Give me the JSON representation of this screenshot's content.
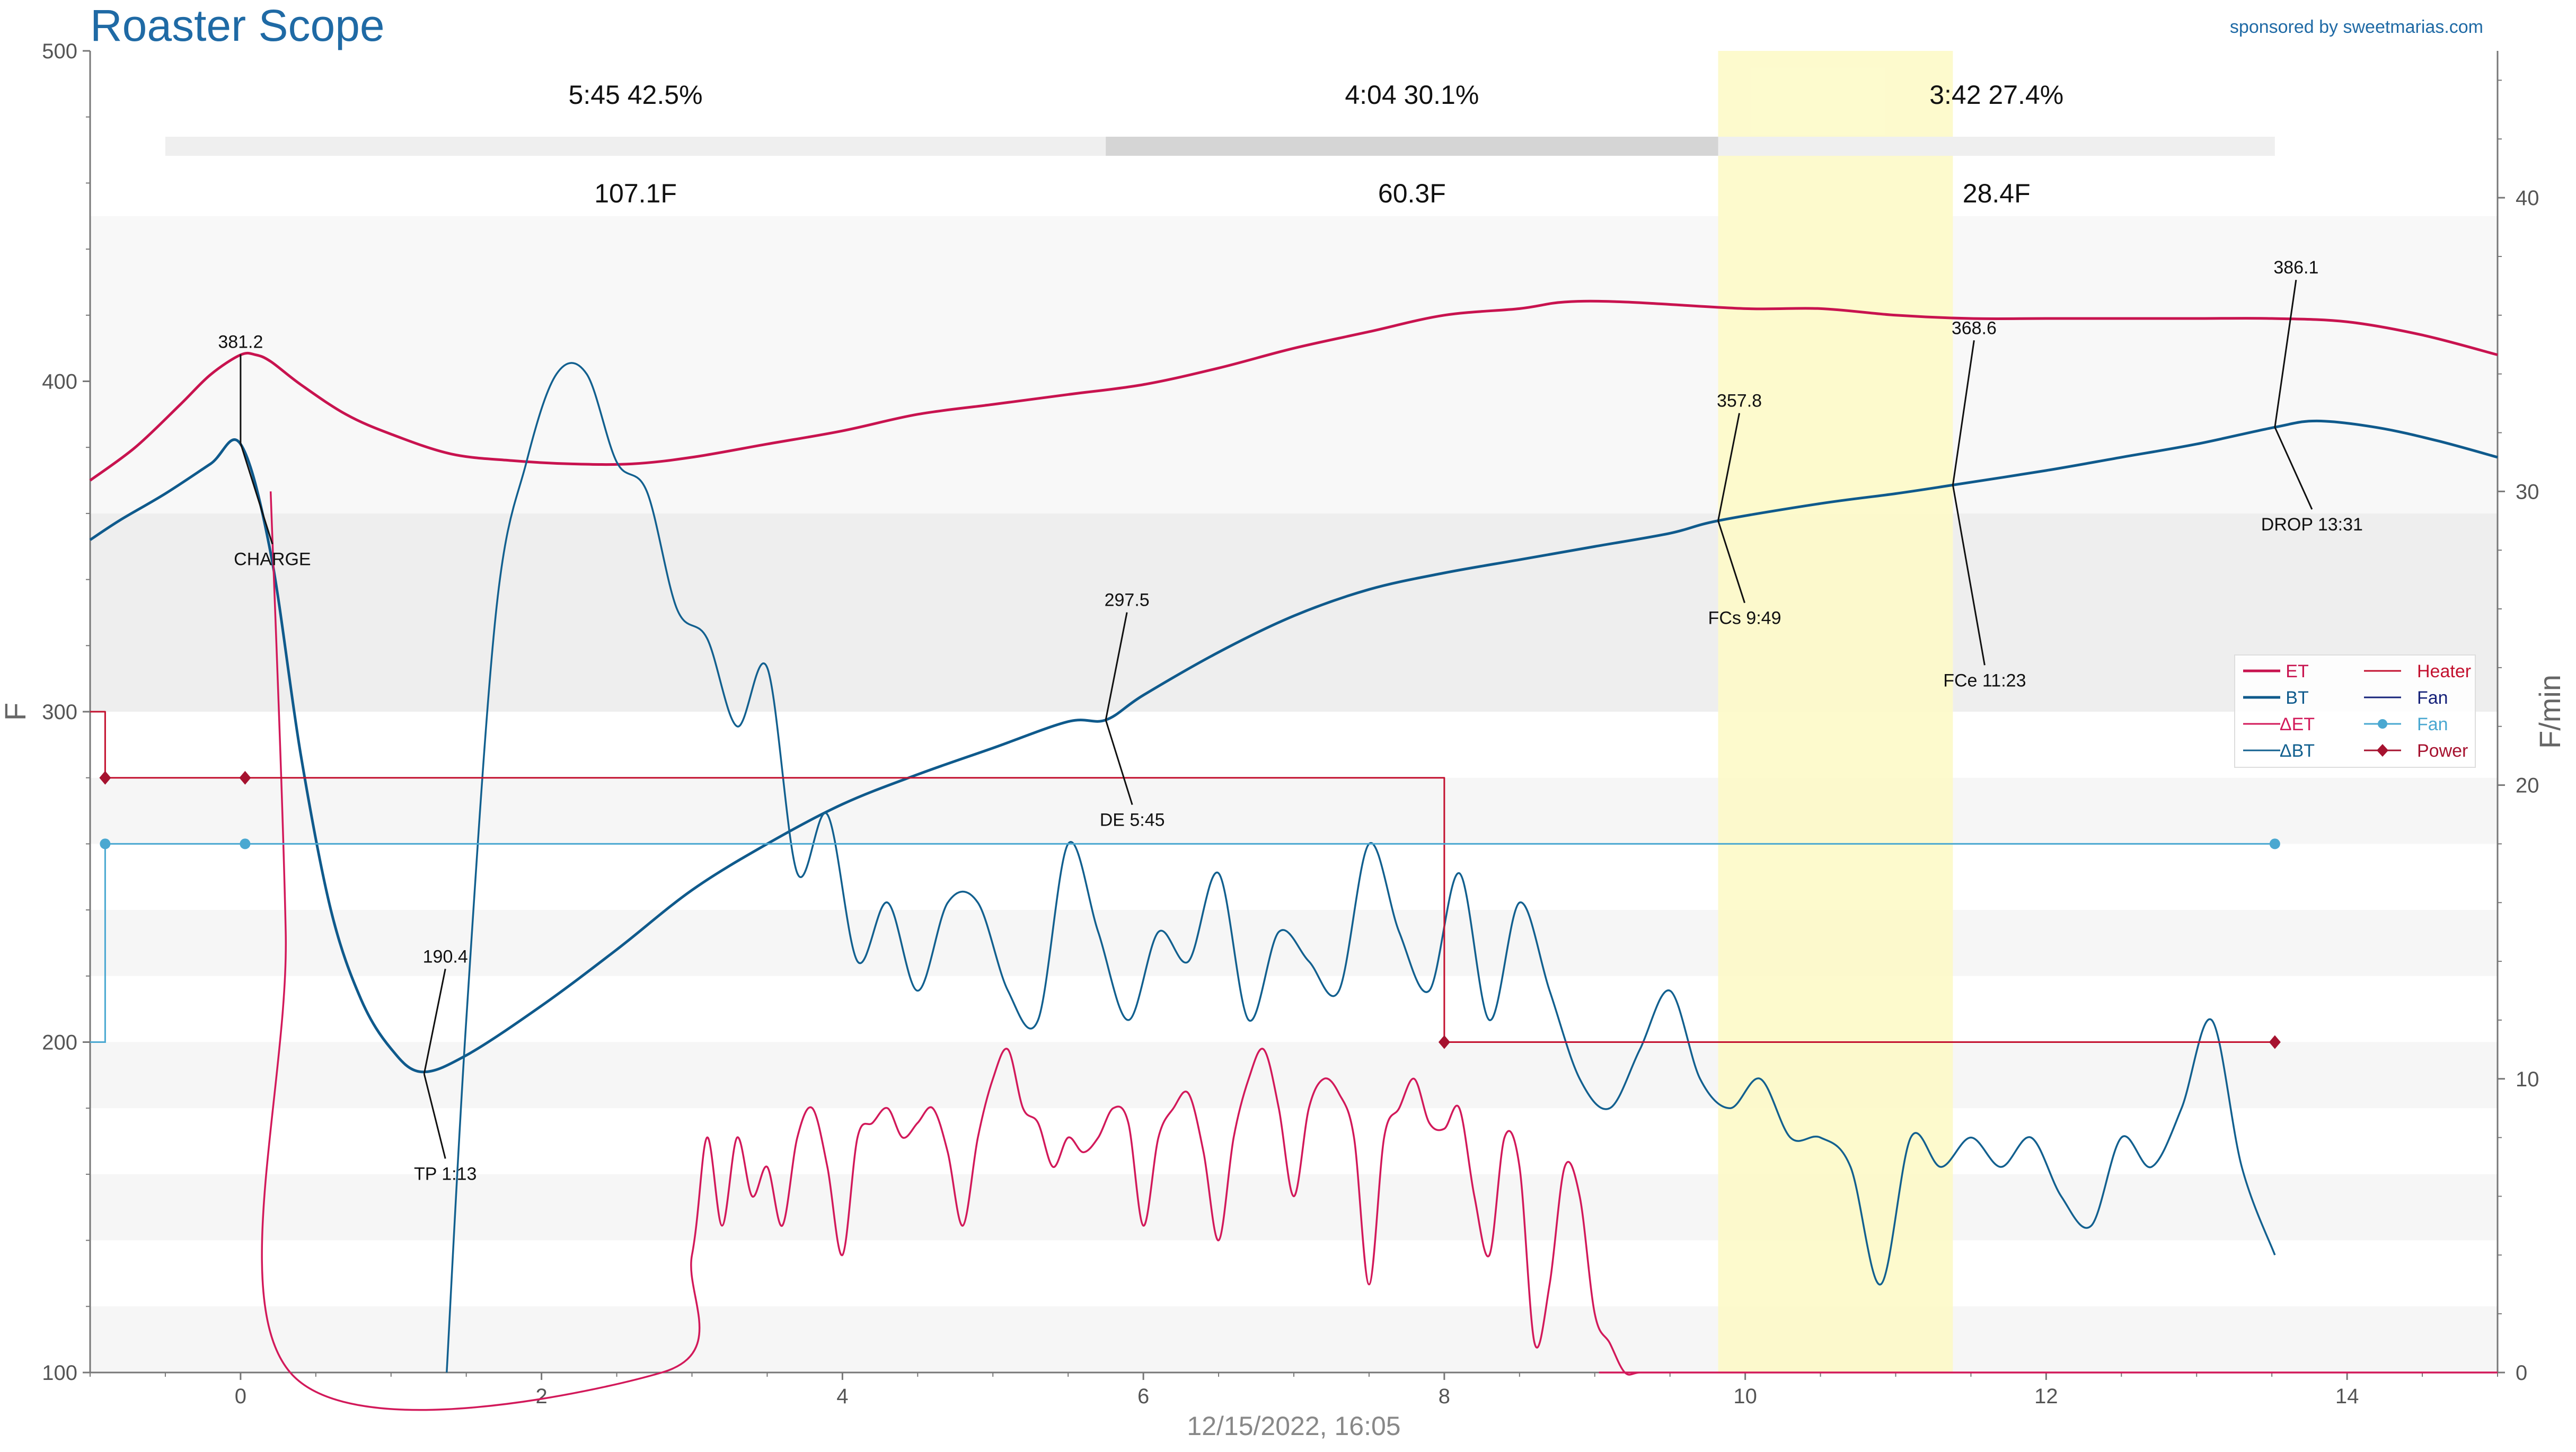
{
  "app": {
    "title": "Roaster Scope",
    "sponsor": "sponsored by sweetmarias.com",
    "timestamp": "12/15/2022, 16:05"
  },
  "colors": {
    "et": "#c8134f",
    "bt": "#0f5a8c",
    "delta_et": "#d2195a",
    "delta_bt": "#12608f",
    "heater": "#c3112f",
    "fan_line": "#17237a",
    "fan_points": "#4aa8d1",
    "power": "#a6122f",
    "highlight": "#fdfac8"
  },
  "chart_data": {
    "type": "line",
    "xlabel": "",
    "ylabel": "F",
    "y2label": "F/min",
    "xlim": [
      -1,
      15
    ],
    "ylim": [
      100,
      500
    ],
    "y2lim": [
      0,
      45
    ],
    "x_ticks": [
      0,
      2,
      4,
      6,
      8,
      10,
      12,
      14
    ],
    "y_ticks": [
      100,
      200,
      300,
      400,
      500
    ],
    "y2_ticks": [
      0,
      10,
      20,
      30,
      40
    ],
    "phases": [
      {
        "time": "5:45",
        "pct": "42.5%",
        "delta": "107.1F"
      },
      {
        "time": "4:04",
        "pct": "30.1%",
        "delta": "60.3F"
      },
      {
        "time": "3:42",
        "pct": "27.4%",
        "delta": "28.4F"
      }
    ],
    "phase_boundaries": [
      -0.5,
      5.75,
      9.82,
      13.52
    ],
    "first_crack_window": [
      9.82,
      11.38
    ],
    "series": [
      {
        "name": "ET",
        "axis": "left",
        "x": [
          -1,
          -0.7,
          -0.4,
          -0.2,
          0,
          0.1,
          0.2,
          0.4,
          0.7,
          1.0,
          1.4,
          1.8,
          2.2,
          2.6,
          3.0,
          3.5,
          4.0,
          4.5,
          5.0,
          5.5,
          6.0,
          6.5,
          7.0,
          7.5,
          8.0,
          8.5,
          8.8,
          9.2,
          10.0,
          10.5,
          11.0,
          11.5,
          12.0,
          12.5,
          13.0,
          13.5,
          14.0,
          14.5,
          15.0
        ],
        "y": [
          370,
          380,
          393,
          402,
          408,
          408,
          406,
          399,
          390,
          384,
          378,
          376,
          375,
          375,
          377,
          381,
          385,
          390,
          393,
          396,
          399,
          404,
          410,
          415,
          420,
          422,
          424,
          424,
          422,
          422,
          420,
          419,
          419,
          419,
          419,
          419,
          418,
          414,
          408
        ]
      },
      {
        "name": "BT",
        "axis": "left",
        "x": [
          -1,
          -0.8,
          -0.5,
          -0.2,
          0,
          0.2,
          0.4,
          0.6,
          0.8,
          1.0,
          1.2,
          1.5,
          2.0,
          2.5,
          3.0,
          3.5,
          4.0,
          4.5,
          5.0,
          5.5,
          5.75,
          6.0,
          6.5,
          7.0,
          7.5,
          8.0,
          8.5,
          9.0,
          9.5,
          9.82,
          10.5,
          11.0,
          11.38,
          12.0,
          12.5,
          13.0,
          13.52,
          13.8,
          14.2,
          14.6,
          15.0
        ],
        "y": [
          352,
          358,
          366,
          375,
          381,
          348,
          287,
          240,
          213,
          198,
          191,
          196,
          211,
          228,
          246,
          260,
          272,
          281,
          289,
          297,
          297.5,
          305,
          318,
          329,
          337,
          342,
          346,
          350,
          354,
          357.8,
          363,
          366,
          368.6,
          373,
          377,
          381,
          386.1,
          388,
          386,
          382,
          377
        ]
      },
      {
        "name": "ΔET",
        "axis": "right",
        "x": [
          0.2,
          0.3,
          0.33,
          2.8,
          3.0,
          3.1,
          3.2,
          3.3,
          3.4,
          3.5,
          3.6,
          3.7,
          3.8,
          3.9,
          4.0,
          4.1,
          4.2,
          4.3,
          4.4,
          4.5,
          4.6,
          4.7,
          4.8,
          4.9,
          5.0,
          5.1,
          5.2,
          5.3,
          5.4,
          5.5,
          5.6,
          5.7,
          5.8,
          5.9,
          6.0,
          6.1,
          6.2,
          6.3,
          6.4,
          6.5,
          6.6,
          6.7,
          6.8,
          6.9,
          7.0,
          7.1,
          7.2,
          7.3,
          7.4,
          7.5,
          7.6,
          7.7,
          7.8,
          7.9,
          8.0,
          8.1,
          8.2,
          8.3,
          8.4,
          8.5,
          8.6,
          8.7,
          8.8,
          8.9,
          9.0,
          9.1,
          9.2,
          9.3,
          9.5,
          15.0
        ],
        "y": [
          30,
          15,
          0,
          0,
          4,
          8,
          5,
          8,
          6,
          7,
          5,
          8,
          9,
          7,
          4,
          8,
          8.5,
          9,
          8,
          8.5,
          9,
          7.5,
          5,
          8,
          10,
          11,
          9,
          8.5,
          7,
          8,
          7.5,
          8,
          9,
          8.5,
          5,
          8,
          9,
          9.5,
          7.5,
          4.5,
          8,
          10,
          11,
          9,
          6,
          9,
          10,
          9.5,
          8,
          3,
          8,
          9,
          10,
          8.5,
          8.3,
          9,
          6,
          4,
          8,
          7,
          1,
          3,
          7,
          6,
          2,
          1,
          0,
          0,
          0,
          0
        ]
      },
      {
        "name": "ΔBT",
        "axis": "right",
        "x": [
          1.37,
          1.5,
          1.7,
          1.9,
          2.1,
          2.3,
          2.5,
          2.7,
          2.9,
          3.1,
          3.3,
          3.5,
          3.7,
          3.9,
          4.1,
          4.3,
          4.5,
          4.7,
          4.9,
          5.1,
          5.3,
          5.5,
          5.7,
          5.9,
          6.1,
          6.3,
          6.5,
          6.7,
          6.9,
          7.1,
          7.3,
          7.5,
          7.7,
          7.9,
          8.1,
          8.3,
          8.5,
          8.7,
          8.9,
          9.1,
          9.3,
          9.5,
          9.7,
          9.9,
          10.1,
          10.3,
          10.5,
          10.7,
          10.9,
          11.1,
          11.3,
          11.5,
          11.7,
          11.9,
          12.1,
          12.3,
          12.5,
          12.7,
          12.9,
          13.1,
          13.3,
          13.52
        ],
        "y": [
          0,
          12,
          26,
          31,
          34,
          34,
          31,
          30,
          26,
          25,
          22,
          24,
          17,
          19,
          14,
          16,
          13,
          16,
          16,
          13,
          12,
          18,
          15,
          12,
          15,
          14,
          17,
          12,
          15,
          14,
          13,
          18,
          15,
          13,
          17,
          12,
          16,
          13,
          10,
          9,
          11,
          13,
          10,
          9,
          10,
          8,
          8,
          7,
          3,
          8,
          7,
          8,
          7,
          8,
          6,
          5,
          8,
          7,
          9,
          12,
          7,
          4
        ]
      },
      {
        "name": "Heater",
        "axis": "left",
        "x": [
          -1,
          -0.9,
          -0.9,
          0,
          8,
          8,
          13.52
        ],
        "y": [
          300,
          300,
          280,
          280,
          280,
          200,
          200
        ]
      },
      {
        "name": "Fan",
        "axis": "left",
        "x": [
          -1,
          -0.9,
          -0.9,
          13.52
        ],
        "y": [
          200,
          200,
          260,
          260
        ]
      },
      {
        "name": "Fan",
        "axis": "left",
        "x": [
          -0.9,
          0.03,
          13.52
        ],
        "y": [
          260,
          260,
          260
        ]
      },
      {
        "name": "Power",
        "axis": "left",
        "x": [
          -0.9,
          0.03,
          8,
          13.52
        ],
        "y": [
          280,
          280,
          200,
          200
        ]
      }
    ],
    "annotations": [
      {
        "value": "381.2",
        "label": "CHARGE",
        "x": 0,
        "y": 381.2
      },
      {
        "value": "190.4",
        "label": "TP 1:13",
        "x": 1.22,
        "y": 190.4
      },
      {
        "value": "297.5",
        "label": "DE 5:45",
        "x": 5.75,
        "y": 297.5
      },
      {
        "value": "357.8",
        "label": "FCs 9:49",
        "x": 9.82,
        "y": 357.8
      },
      {
        "value": "368.6",
        "label": "FCe 11:23",
        "x": 11.38,
        "y": 368.6
      },
      {
        "value": "386.1",
        "label": "DROP 13:31",
        "x": 13.52,
        "y": 386.1
      }
    ],
    "legend": {
      "placement": "right",
      "entries": [
        {
          "name": "ET",
          "style": "line"
        },
        {
          "name": "BT",
          "style": "line"
        },
        {
          "name": "ΔET",
          "style": "line"
        },
        {
          "name": "ΔBT",
          "style": "line"
        },
        {
          "name": "Heater",
          "style": "line"
        },
        {
          "name": "Fan",
          "style": "line"
        },
        {
          "name": "Fan",
          "style": "dot"
        },
        {
          "name": "Power",
          "style": "diamond"
        }
      ]
    },
    "grid": true
  }
}
